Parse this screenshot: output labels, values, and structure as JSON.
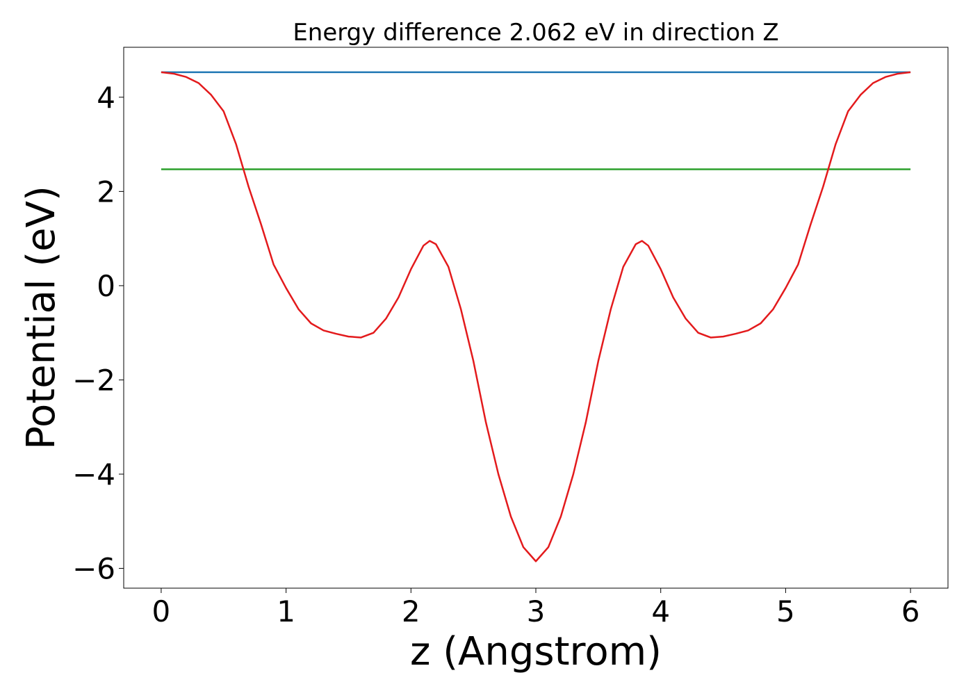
{
  "chart_data": {
    "type": "line",
    "title": "Energy difference 2.062 eV in direction Z",
    "xlabel": "z (Angstrom)",
    "ylabel": "Potential (eV)",
    "xlim": [
      -0.3,
      6.3
    ],
    "ylim": [
      -6.42,
      5.06
    ],
    "xticks": [
      0,
      1,
      2,
      3,
      4,
      5,
      6
    ],
    "yticks": [
      {
        "value": -6,
        "label": "−6"
      },
      {
        "value": -4,
        "label": "−4"
      },
      {
        "value": -2,
        "label": "−2"
      },
      0,
      2,
      4
    ],
    "series": [
      {
        "color": "#1f77b4",
        "x": [
          0,
          6
        ],
        "values": [
          4.53,
          4.53
        ]
      },
      {
        "color": "#2ca02c",
        "x": [
          0,
          6
        ],
        "values": [
          2.47,
          2.47
        ]
      },
      {
        "color": "#e31a1c",
        "x": [
          0,
          0.1,
          0.2,
          0.3,
          0.4,
          0.5,
          0.6,
          0.7,
          0.8,
          0.9,
          1.0,
          1.1,
          1.2,
          1.3,
          1.4,
          1.5,
          1.6,
          1.7,
          1.8,
          1.9,
          2.0,
          2.1,
          2.15,
          2.2,
          2.3,
          2.4,
          2.5,
          2.6,
          2.7,
          2.8,
          2.9,
          3.0,
          3.1,
          3.2,
          3.3,
          3.4,
          3.5,
          3.6,
          3.7,
          3.8,
          3.85,
          3.9,
          4.0,
          4.1,
          4.2,
          4.3,
          4.4,
          4.5,
          4.6,
          4.7,
          4.8,
          4.9,
          5.0,
          5.1,
          5.2,
          5.3,
          5.4,
          5.5,
          5.6,
          5.7,
          5.8,
          5.9,
          6.0
        ],
        "values": [
          4.53,
          4.5,
          4.43,
          4.3,
          4.05,
          3.7,
          3.0,
          2.1,
          1.3,
          0.45,
          -0.05,
          -0.5,
          -0.8,
          -0.95,
          -1.02,
          -1.08,
          -1.1,
          -1.0,
          -0.7,
          -0.25,
          0.35,
          0.85,
          0.95,
          0.88,
          0.4,
          -0.5,
          -1.6,
          -2.9,
          -4.0,
          -4.9,
          -5.55,
          -5.85,
          -5.55,
          -4.9,
          -4.0,
          -2.9,
          -1.6,
          -0.5,
          0.4,
          0.88,
          0.95,
          0.85,
          0.35,
          -0.25,
          -0.7,
          -1.0,
          -1.1,
          -1.08,
          -1.02,
          -0.95,
          -0.8,
          -0.5,
          -0.05,
          0.45,
          1.3,
          2.1,
          3.0,
          3.7,
          4.05,
          4.3,
          4.43,
          4.5,
          4.53
        ]
      }
    ]
  }
}
